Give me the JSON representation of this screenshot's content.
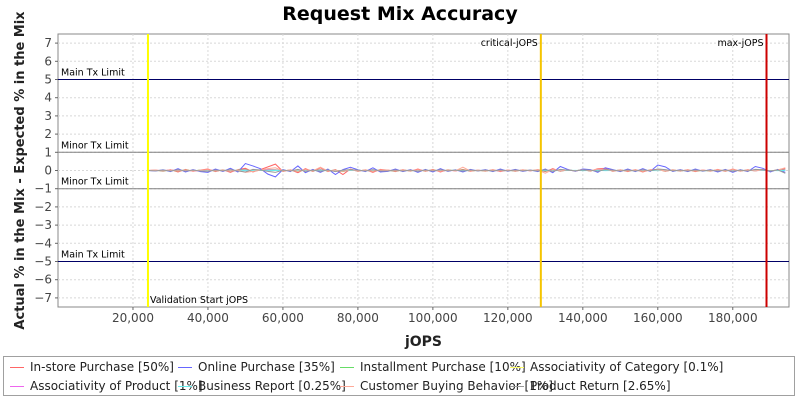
{
  "chart_data": {
    "type": "line",
    "title": "Request Mix Accuracy",
    "xlabel": "jOPS",
    "ylabel": "Actual % in the Mix - Expected % in the Mix",
    "xlim": [
      0,
      195000
    ],
    "ylim": [
      -7.5,
      7.5
    ],
    "xticks": [
      20000,
      40000,
      60000,
      80000,
      100000,
      120000,
      140000,
      160000,
      180000
    ],
    "xtick_labels": [
      "20,000",
      "40,000",
      "60,000",
      "80,000",
      "100,000",
      "120,000",
      "140,000",
      "160,000",
      "180,000"
    ],
    "yticks": [
      7,
      6,
      5,
      4,
      3,
      2,
      1,
      0,
      -1,
      -2,
      -3,
      -4,
      -5,
      -6,
      -7
    ],
    "ytick_labels": [
      "7",
      "6",
      "5",
      "4",
      "3",
      "2",
      "1",
      "0",
      "−1",
      "−2",
      "−3",
      "−4",
      "−5",
      "−6",
      "−7"
    ],
    "grid": true,
    "legend_position": "bottom",
    "horizontal_lines": [
      {
        "label": "Main Tx Limit",
        "y": 5,
        "color": "#000066"
      },
      {
        "label": "Minor Tx Limit",
        "y": 1,
        "color": "#808080"
      },
      {
        "label": "Minor Tx Limit",
        "y": -1,
        "color": "#808080"
      },
      {
        "label": "Main Tx Limit",
        "y": -5,
        "color": "#000066"
      }
    ],
    "vertical_lines": [
      {
        "label": "Validation Start jOPS",
        "x": 24000,
        "color": "#ffff00"
      },
      {
        "label": "critical-jOPS",
        "x": 128800,
        "color": "#f5c400"
      },
      {
        "label": "max-jOPS",
        "x": 189000,
        "color": "#cc0000"
      }
    ],
    "x": [
      24000,
      26000,
      28000,
      30000,
      32000,
      34000,
      36000,
      38000,
      40000,
      42000,
      44000,
      46000,
      48000,
      50000,
      52000,
      54000,
      56000,
      58000,
      60000,
      62000,
      64000,
      66000,
      68000,
      70000,
      72000,
      74000,
      76000,
      78000,
      80000,
      82000,
      84000,
      86000,
      88000,
      90000,
      92000,
      94000,
      96000,
      98000,
      100000,
      102000,
      104000,
      106000,
      108000,
      110000,
      112000,
      114000,
      116000,
      118000,
      120000,
      122000,
      124000,
      126000,
      128000,
      130000,
      132000,
      134000,
      136000,
      138000,
      140000,
      142000,
      144000,
      146000,
      148000,
      150000,
      152000,
      154000,
      156000,
      158000,
      160000,
      162000,
      164000,
      166000,
      168000,
      170000,
      172000,
      174000,
      176000,
      178000,
      180000,
      182000,
      184000,
      186000,
      188000,
      190000,
      192000,
      194000
    ],
    "series": [
      {
        "name": "In-store Purchase [50%]",
        "color": "#ff6666",
        "values": [
          0,
          0.02,
          -0.04,
          0.05,
          -0.08,
          0.06,
          -0.05,
          0.03,
          0.08,
          -0.06,
          0.04,
          -0.1,
          0.05,
          0.12,
          -0.08,
          0.05,
          0.2,
          0.35,
          -0.05,
          0.04,
          -0.12,
          0.1,
          -0.05,
          0.15,
          -0.06,
          0.05,
          -0.22,
          0.08,
          -0.05,
          0.04,
          -0.1,
          0.06,
          0.02,
          -0.06,
          0.05,
          -0.04,
          0.08,
          -0.05,
          0.06,
          -0.08,
          0.04,
          -0.03,
          0.06,
          -0.05,
          0.02,
          -0.04,
          0.05,
          -0.06,
          0.03,
          -0.05,
          0.04,
          -0.02,
          0.05,
          -0.06,
          0.1,
          -0.05,
          0.04,
          -0.03,
          0.06,
          -0.04,
          0.1,
          0.12,
          -0.05,
          0.04,
          -0.06,
          0.05,
          -0.08,
          0.04,
          0.06,
          -0.05,
          0.04,
          -0.04,
          0.05,
          -0.06,
          0.03,
          -0.04,
          0.06,
          -0.05,
          0.08,
          -0.04,
          0.05,
          -0.03,
          0.06,
          -0.05,
          0.04,
          0.1
        ]
      },
      {
        "name": "Online Purchase [35%]",
        "color": "#6666ff",
        "values": [
          0,
          -0.03,
          0.04,
          -0.06,
          0.1,
          -0.08,
          0.05,
          -0.06,
          -0.1,
          0.08,
          -0.05,
          0.12,
          -0.08,
          0.38,
          0.25,
          0.1,
          -0.2,
          -0.35,
          0.05,
          -0.06,
          0.25,
          -0.12,
          0.06,
          -0.1,
          0.08,
          -0.22,
          0.05,
          0.18,
          0.04,
          -0.06,
          0.15,
          -0.08,
          -0.05,
          0.08,
          -0.06,
          0.05,
          -0.1,
          0.06,
          -0.08,
          0.1,
          -0.05,
          0.04,
          -0.08,
          0.06,
          -0.03,
          0.05,
          -0.06,
          0.08,
          -0.04,
          0.06,
          -0.05,
          0.03,
          -0.06,
          0.08,
          -0.12,
          0.22,
          0.06,
          -0.05,
          0.08,
          0.05,
          -0.1,
          0.15,
          0.05,
          -0.06,
          0.08,
          -0.06,
          0.1,
          -0.05,
          0.3,
          0.2,
          -0.05,
          0.05,
          -0.06,
          0.08,
          -0.04,
          0.05,
          -0.08,
          0.06,
          -0.1,
          0.05,
          -0.06,
          0.22,
          0.12,
          -0.08,
          0.06,
          -0.1
        ]
      },
      {
        "name": "Installment Purchase [10%]",
        "color": "#66dd66",
        "values": [
          0,
          0.01,
          -0.02,
          0.02,
          -0.03,
          0.03,
          -0.02,
          0.02,
          0.03,
          -0.02,
          0.02,
          -0.04,
          0.03,
          0.05,
          -0.04,
          0.02,
          0.05,
          0.04,
          -0.02,
          0.02,
          -0.05,
          0.04,
          -0.02,
          0.05,
          -0.03,
          0.02,
          -0.06,
          0.03,
          -0.02,
          0.02,
          -0.04,
          0.03,
          0.01,
          -0.03,
          0.02,
          -0.02,
          0.03,
          -0.02,
          0.03,
          -0.03,
          0.02,
          -0.01,
          0.03,
          -0.02,
          0.01,
          -0.02,
          0.02,
          -0.03,
          0.01,
          -0.02,
          0.02,
          -0.01,
          0.02,
          -0.03,
          0.04,
          -0.02,
          0.02,
          -0.01,
          0.03,
          -0.02,
          0.04,
          0.05,
          -0.02,
          0.02,
          -0.03,
          0.02,
          -0.04,
          0.02,
          0.03,
          -0.02,
          0.02,
          -0.02,
          0.02,
          -0.03,
          0.01,
          -0.02,
          0.03,
          -0.02,
          0.04,
          -0.02,
          0.02,
          -0.01,
          0.03,
          -0.02,
          0.02,
          0.04
        ]
      },
      {
        "name": "Associativity of Category [0.1%]",
        "color": "#ffff66",
        "values": [
          0,
          0,
          0,
          0,
          0,
          0,
          0,
          0,
          0,
          0,
          0,
          0,
          0,
          0,
          0,
          0,
          0,
          0,
          0,
          0,
          0,
          0,
          0,
          0,
          0,
          0,
          0,
          0,
          0,
          0,
          0,
          0,
          0,
          0,
          0,
          0,
          0,
          0,
          0,
          0,
          0,
          0,
          0,
          0,
          0,
          0,
          0,
          0,
          0,
          0,
          0,
          0,
          0,
          0,
          0,
          0,
          0,
          0,
          0,
          0,
          0,
          0,
          0,
          0,
          0,
          0,
          0,
          0,
          0,
          0,
          0,
          0,
          0,
          0,
          0,
          0,
          0,
          0,
          0,
          0,
          0,
          0,
          0,
          0,
          0,
          0
        ]
      },
      {
        "name": "Associativity of Product [1%]",
        "color": "#ee66ee",
        "values": [
          0,
          0.01,
          -0.01,
          0.02,
          -0.01,
          0.01,
          -0.02,
          0.01,
          0.02,
          -0.01,
          0.01,
          -0.02,
          0.01,
          0.02,
          -0.02,
          0.01,
          0.03,
          0.02,
          -0.01,
          0.01,
          -0.02,
          0.02,
          -0.01,
          0.02,
          -0.01,
          0.01,
          -0.03,
          0.01,
          -0.01,
          0.01,
          -0.02,
          0.01,
          0.01,
          -0.01,
          0.01,
          -0.01,
          0.02,
          -0.01,
          0.01,
          -0.02,
          0.01,
          -0.01,
          0.01,
          -0.01,
          0.01,
          -0.01,
          0.01,
          -0.02,
          0.01,
          -0.01,
          0.01,
          -0.01,
          0.01,
          -0.01,
          0.02,
          -0.01,
          0.01,
          -0.01,
          0.01,
          -0.01,
          0.02,
          0.02,
          -0.01,
          0.01,
          -0.01,
          0.01,
          -0.02,
          0.01,
          0.02,
          -0.01,
          0.01,
          -0.01,
          0.01,
          -0.01,
          0.01,
          -0.01,
          0.01,
          -0.01,
          0.02,
          -0.01,
          0.01,
          -0.01,
          0.01,
          -0.01,
          0.01,
          0.02
        ]
      },
      {
        "name": "Business Report [0.25%]",
        "color": "#66eeee",
        "values": [
          0,
          0,
          0.01,
          -0.01,
          0.01,
          0,
          -0.01,
          0.01,
          0,
          -0.01,
          0.01,
          0,
          0.01,
          -0.01,
          0,
          0.01,
          -0.01,
          0,
          0.01,
          -0.01,
          0,
          0.01,
          0,
          -0.01,
          0.01,
          0,
          -0.01,
          0,
          0.01,
          -0.01,
          0,
          0.01,
          0,
          -0.01,
          0.01,
          0,
          -0.01,
          0.01,
          0,
          -0.01,
          0,
          0.01,
          -0.01,
          0,
          0.01,
          0,
          -0.01,
          0.01,
          0,
          -0.01,
          0.01,
          0,
          -0.01,
          0.01,
          0,
          -0.01,
          0,
          0.01,
          -0.01,
          0,
          0.01,
          -0.01,
          0,
          0.01,
          0,
          -0.01,
          0.01,
          0,
          -0.01,
          0.01,
          0,
          -0.01,
          0,
          0.01,
          -0.01,
          0,
          0.01,
          0,
          -0.01,
          0.01,
          0,
          -0.01,
          0.01,
          0,
          -0.01,
          0
        ]
      },
      {
        "name": "Customer Buying Behavior [1%]",
        "color": "#ffaa99",
        "values": [
          0,
          0.02,
          -0.01,
          0.03,
          -0.02,
          0.02,
          -0.03,
          0.02,
          0.04,
          -0.02,
          0.02,
          -0.03,
          0.02,
          -0.1,
          -0.05,
          0.02,
          0.1,
          0.15,
          -0.02,
          0.03,
          -0.04,
          0.05,
          -0.02,
          0.18,
          -0.03,
          0.02,
          -0.05,
          0.04,
          -0.02,
          0.03,
          -0.04,
          0.03,
          0.02,
          -0.02,
          0.03,
          -0.02,
          0.04,
          -0.02,
          0.03,
          -0.04,
          0.02,
          -0.02,
          0.18,
          -0.03,
          0.02,
          -0.02,
          0.03,
          -0.03,
          0.02,
          -0.02,
          0.03,
          -0.01,
          0.03,
          -0.15,
          0.05,
          -0.02,
          0.03,
          -0.02,
          0.04,
          -0.02,
          0.08,
          0.06,
          -0.02,
          0.03,
          -0.03,
          0.03,
          -0.04,
          0.02,
          0.04,
          -0.02,
          0.02,
          -0.02,
          0.03,
          -0.03,
          0.02,
          -0.02,
          0.04,
          -0.02,
          0.05,
          -0.02,
          0.03,
          -0.02,
          0.04,
          -0.02,
          0.03,
          0.15
        ]
      },
      {
        "name": "Product Return [2.65%]",
        "color": "#999999",
        "values": [
          0,
          -0.02,
          0.02,
          -0.03,
          0.04,
          -0.03,
          0.02,
          -0.03,
          -0.04,
          0.03,
          -0.02,
          0.05,
          -0.03,
          -0.08,
          0.06,
          0.03,
          -0.05,
          -0.1,
          0.02,
          -0.03,
          0.06,
          -0.05,
          0.02,
          -0.04,
          0.03,
          -0.06,
          0.02,
          0.05,
          0.02,
          -0.03,
          0.05,
          -0.03,
          -0.02,
          0.03,
          -0.03,
          0.02,
          -0.04,
          0.03,
          -0.03,
          0.04,
          -0.02,
          0.02,
          -0.03,
          0.03,
          -0.02,
          0.02,
          -0.03,
          0.03,
          -0.02,
          0.03,
          -0.02,
          0.02,
          -0.03,
          0.04,
          -0.05,
          0.06,
          0.02,
          -0.02,
          0.03,
          0.02,
          -0.04,
          0.05,
          0.02,
          -0.03,
          0.03,
          -0.03,
          0.04,
          -0.02,
          0.08,
          0.05,
          -0.02,
          0.02,
          -0.03,
          0.03,
          -0.02,
          0.02,
          -0.03,
          0.03,
          -0.04,
          0.02,
          -0.03,
          0.06,
          0.04,
          -0.03,
          0.03,
          -0.15
        ]
      }
    ]
  }
}
